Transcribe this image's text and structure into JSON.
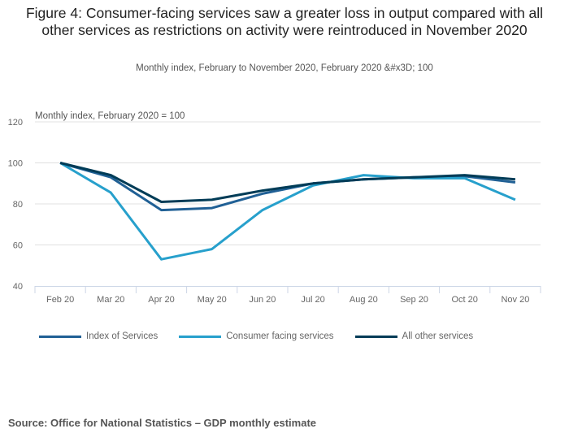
{
  "chart_data": {
    "type": "line",
    "title": "Figure 4: Consumer-facing services saw a greater loss in output compared with all other services as restrictions on activity were reintroduced in November 2020",
    "subtitle": "Monthly index, February to November 2020, February 2020 &#x3D; 100",
    "xlabel": "",
    "ylabel": "Monthly index, February 2020 = 100",
    "categories": [
      "Feb 20",
      "Mar 20",
      "Apr 20",
      "May 20",
      "Jun 20",
      "Jul 20",
      "Aug 20",
      "Sep 20",
      "Oct 20",
      "Nov 20"
    ],
    "ylim": [
      40,
      120
    ],
    "yticks": [
      120,
      100,
      80,
      60,
      40
    ],
    "grid": true,
    "legend_position": "bottom-left",
    "series": [
      {
        "name": "Index of Services",
        "color": "#206095",
        "values": [
          100,
          93,
          77,
          78,
          85,
          90,
          92,
          93,
          93.5,
          90.5
        ]
      },
      {
        "name": "Consumer facing services",
        "color": "#27a0cc",
        "values": [
          100,
          85.5,
          53,
          58,
          77,
          89,
          94,
          92.5,
          92.5,
          82
        ]
      },
      {
        "name": "All other services",
        "color": "#003c57",
        "values": [
          100,
          94,
          81,
          82,
          86.5,
          90,
          92,
          93,
          94,
          92
        ]
      }
    ]
  },
  "source": "Source: Office for National Statistics – GDP monthly estimate"
}
